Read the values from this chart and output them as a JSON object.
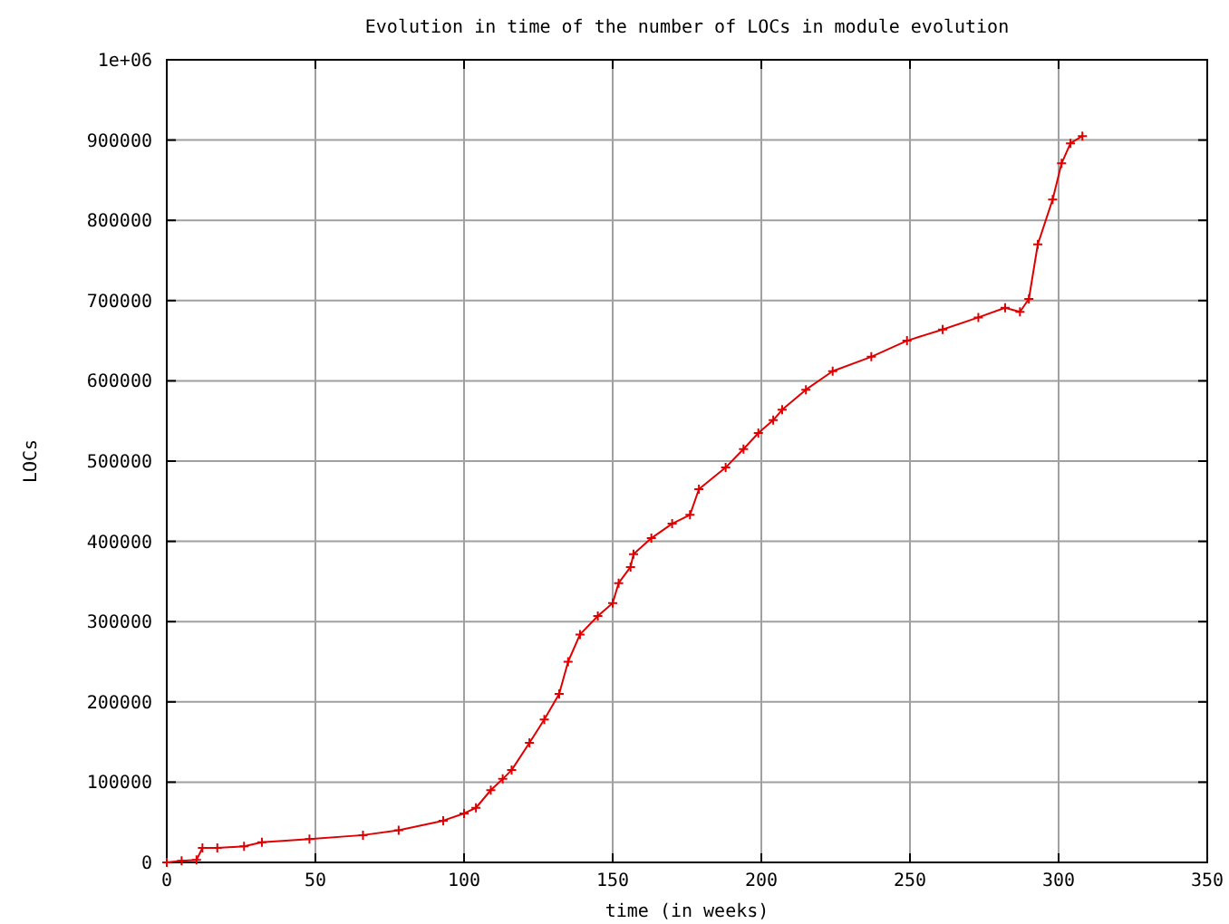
{
  "chart_data": {
    "type": "line",
    "title": "Evolution in time of the number of LOCs in module evolution",
    "xlabel": "time (in weeks)",
    "ylabel": "LOCs",
    "xlim": [
      0,
      350
    ],
    "xticks": [
      0,
      50,
      100,
      150,
      200,
      250,
      300,
      350
    ],
    "ylim": [
      0,
      1000000
    ],
    "yticks": [
      0,
      100000,
      200000,
      300000,
      400000,
      500000,
      600000,
      700000,
      800000,
      900000,
      {
        "value": 1000000,
        "label": "1e+06"
      }
    ],
    "grid": true,
    "marker": "cross",
    "line_style": "solid",
    "series": [
      {
        "color": "#e00000",
        "x": [
          0,
          5,
          10,
          12,
          17,
          26,
          32,
          48,
          66,
          78,
          93,
          100,
          104,
          109,
          113,
          116,
          122,
          127,
          132,
          135,
          139,
          145,
          150,
          152,
          156,
          157,
          163,
          170,
          176,
          179,
          188,
          194,
          199,
          204,
          207,
          215,
          224,
          237,
          249,
          261,
          273,
          282,
          287,
          290,
          293,
          298,
          301,
          304,
          308
        ],
        "values": [
          0,
          2000,
          3000,
          18000,
          18000,
          20000,
          25000,
          29000,
          34000,
          40000,
          52000,
          61000,
          68000,
          90000,
          104000,
          115000,
          149000,
          178000,
          210000,
          250000,
          284000,
          307000,
          323000,
          348000,
          368000,
          384000,
          404000,
          422000,
          433000,
          465000,
          492000,
          515000,
          535000,
          551000,
          564000,
          589000,
          612000,
          630000,
          650000,
          664000,
          679000,
          691000,
          686000,
          702000,
          770000,
          826000,
          871000,
          896000,
          905000
        ]
      }
    ]
  }
}
